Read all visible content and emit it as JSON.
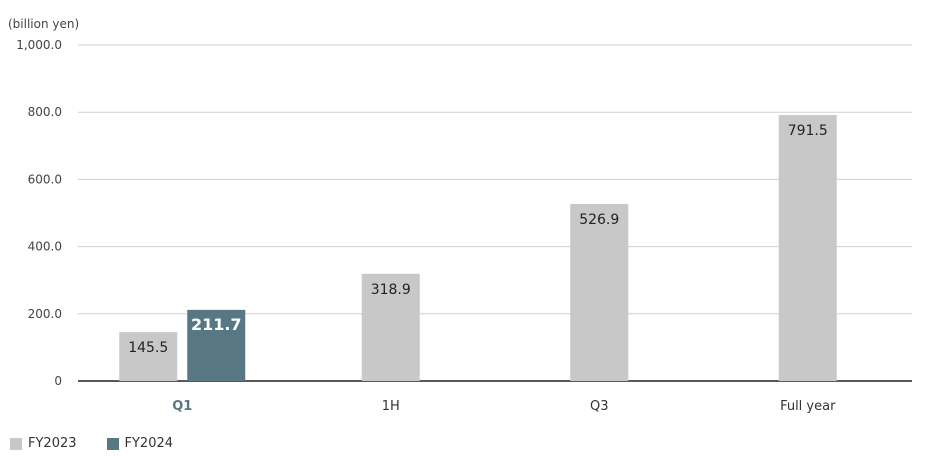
{
  "chart_data": {
    "type": "bar",
    "unit_label": "(billion yen)",
    "categories": [
      "Q1",
      "1H",
      "Q3",
      "Full year"
    ],
    "highlight_category": "Q1",
    "series": [
      {
        "name": "FY2023",
        "color": "#c8c8c8",
        "values": [
          145.5,
          318.9,
          526.9,
          791.5
        ]
      },
      {
        "name": "FY2024",
        "color": "#587785",
        "values": [
          211.7,
          null,
          null,
          null
        ]
      }
    ],
    "data_labels": {
      "FY2023": [
        "145.5",
        "318.9",
        "526.9",
        "791.5"
      ],
      "FY2024": [
        "211.7",
        null,
        null,
        null
      ]
    },
    "yticks": [
      0,
      200,
      400,
      600,
      800,
      1000
    ],
    "ytick_labels": [
      "0",
      "200.0",
      "400.0",
      "600.0",
      "800.0",
      "1,000.0"
    ],
    "ylim": [
      0,
      1000
    ],
    "grid": true,
    "legend_position": "bottom-left"
  }
}
